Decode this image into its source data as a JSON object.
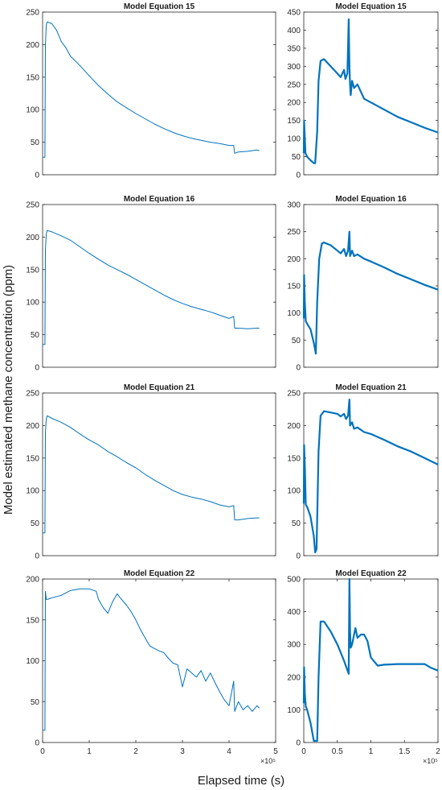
{
  "figure": {
    "ylabel": "Model estimated methane concentration (ppm)",
    "xlabel": "Elapsed time (s)",
    "line_color": "#0072BD"
  },
  "chart_data": [
    {
      "type": "line",
      "title": "Model Equation 15",
      "xlim": [
        0,
        500000
      ],
      "ylim": [
        0,
        250
      ],
      "xticks": [],
      "yticks": [
        0,
        50,
        100,
        150,
        200,
        250
      ],
      "series": [
        {
          "x": [
            0,
            4000,
            5000,
            6000,
            8000,
            10000,
            20000,
            30000,
            40000,
            50000,
            60000,
            80000,
            100000,
            120000,
            140000,
            160000,
            180000,
            200000,
            220000,
            240000,
            260000,
            280000,
            300000,
            320000,
            340000,
            360000,
            380000,
            400000,
            410000,
            412000,
            420000,
            440000,
            460000,
            465000
          ],
          "y": [
            27,
            27,
            27,
            200,
            230,
            235,
            232,
            222,
            205,
            195,
            182,
            168,
            152,
            137,
            124,
            112,
            103,
            94,
            86,
            78,
            71,
            65,
            60,
            56,
            53,
            50,
            48,
            45,
            45,
            33,
            35,
            36,
            38,
            37
          ]
        }
      ]
    },
    {
      "type": "line",
      "title": "Model Equation 15",
      "xlim": [
        0,
        200000
      ],
      "ylim": [
        0,
        450
      ],
      "xticks": [],
      "yticks": [
        0,
        50,
        100,
        150,
        200,
        250,
        300,
        350,
        400,
        450
      ],
      "series": [
        {
          "x": [
            0,
            500,
            1500,
            2500,
            5000,
            10000,
            15000,
            17000,
            20000,
            22000,
            25000,
            30000,
            40000,
            50000,
            55000,
            60000,
            62000,
            65000,
            67000,
            68000,
            69000,
            70000,
            72000,
            75000,
            80000,
            90000,
            100000,
            120000,
            140000,
            160000,
            180000,
            200000
          ],
          "y": [
            60,
            150,
            100,
            60,
            50,
            40,
            32,
            32,
            120,
            260,
            315,
            320,
            300,
            280,
            270,
            290,
            265,
            280,
            430,
            300,
            250,
            220,
            260,
            240,
            250,
            210,
            200,
            180,
            160,
            145,
            130,
            117
          ]
        }
      ]
    },
    {
      "type": "line",
      "title": "Model Equation 16",
      "xlim": [
        0,
        500000
      ],
      "ylim": [
        0,
        250
      ],
      "xticks": [],
      "yticks": [
        0,
        50,
        100,
        150,
        200,
        250
      ],
      "series": [
        {
          "x": [
            0,
            5000,
            6000,
            8000,
            10000,
            20000,
            40000,
            60000,
            80000,
            100000,
            120000,
            140000,
            160000,
            180000,
            200000,
            220000,
            240000,
            260000,
            280000,
            300000,
            320000,
            340000,
            360000,
            380000,
            400000,
            410000,
            412000,
            420000,
            440000,
            460000,
            465000
          ],
          "y": [
            35,
            35,
            180,
            205,
            210,
            208,
            202,
            195,
            185,
            175,
            166,
            157,
            150,
            143,
            135,
            127,
            119,
            111,
            104,
            98,
            93,
            89,
            85,
            80,
            75,
            78,
            60,
            60,
            59,
            60,
            60
          ]
        }
      ]
    },
    {
      "type": "line",
      "title": "Model Equation 16",
      "xlim": [
        0,
        200000
      ],
      "ylim": [
        0,
        300
      ],
      "xticks": [],
      "yticks": [
        0,
        50,
        100,
        150,
        200,
        250,
        300
      ],
      "series": [
        {
          "x": [
            0,
            500,
            1500,
            3000,
            5000,
            10000,
            15000,
            18000,
            20000,
            23000,
            27000,
            30000,
            40000,
            50000,
            55000,
            60000,
            63000,
            66000,
            68000,
            69000,
            72000,
            75000,
            80000,
            90000,
            100000,
            120000,
            140000,
            160000,
            180000,
            200000
          ],
          "y": [
            90,
            170,
            120,
            85,
            80,
            70,
            45,
            25,
            120,
            200,
            228,
            230,
            225,
            215,
            210,
            218,
            205,
            215,
            250,
            205,
            215,
            205,
            208,
            200,
            195,
            184,
            172,
            162,
            152,
            143
          ]
        }
      ]
    },
    {
      "type": "line",
      "title": "Model Equation 21",
      "xlim": [
        0,
        500000
      ],
      "ylim": [
        0,
        250
      ],
      "xticks": [],
      "yticks": [
        0,
        50,
        100,
        150,
        200,
        250
      ],
      "series": [
        {
          "x": [
            0,
            5000,
            6000,
            8000,
            10000,
            20000,
            40000,
            60000,
            80000,
            100000,
            120000,
            140000,
            160000,
            180000,
            200000,
            220000,
            240000,
            260000,
            280000,
            300000,
            320000,
            340000,
            360000,
            380000,
            400000,
            410000,
            412000,
            420000,
            440000,
            460000,
            465000
          ],
          "y": [
            35,
            35,
            190,
            210,
            215,
            211,
            205,
            197,
            187,
            178,
            170,
            160,
            152,
            143,
            135,
            125,
            116,
            108,
            100,
            94,
            90,
            87,
            83,
            78,
            75,
            77,
            55,
            55,
            57,
            58,
            58
          ]
        }
      ]
    },
    {
      "type": "line",
      "title": "Model Equation 21",
      "xlim": [
        0,
        200000
      ],
      "ylim": [
        0,
        250
      ],
      "xticks": [],
      "yticks": [
        0,
        50,
        100,
        150,
        200,
        250
      ],
      "series": [
        {
          "x": [
            0,
            500,
            1500,
            3000,
            5000,
            10000,
            15000,
            17000,
            19000,
            22000,
            25000,
            30000,
            40000,
            50000,
            55000,
            60000,
            63000,
            66000,
            68000,
            69000,
            72000,
            75000,
            80000,
            90000,
            100000,
            120000,
            140000,
            160000,
            180000,
            200000
          ],
          "y": [
            80,
            170,
            140,
            78,
            75,
            60,
            30,
            5,
            10,
            160,
            215,
            222,
            220,
            218,
            214,
            218,
            210,
            215,
            240,
            200,
            205,
            195,
            197,
            190,
            187,
            178,
            168,
            160,
            150,
            140
          ]
        }
      ]
    },
    {
      "type": "line",
      "title": "Model Equation 22",
      "xlim": [
        0,
        500000
      ],
      "ylim": [
        0,
        200
      ],
      "xticks": [
        0,
        1,
        2,
        3,
        4,
        5
      ],
      "x_exponent": "×10⁵",
      "yticks": [
        0,
        50,
        100,
        150,
        200
      ],
      "series": [
        {
          "x": [
            0,
            5000,
            6000,
            8000,
            10000,
            20000,
            40000,
            60000,
            80000,
            100000,
            115000,
            120000,
            130000,
            140000,
            150000,
            160000,
            165000,
            180000,
            190000,
            200000,
            210000,
            220000,
            230000,
            240000,
            250000,
            260000,
            270000,
            280000,
            290000,
            300000,
            310000,
            320000,
            330000,
            340000,
            350000,
            360000,
            370000,
            380000,
            390000,
            400000,
            410000,
            412000,
            420000,
            430000,
            440000,
            450000,
            460000,
            465000
          ],
          "y": [
            15,
            15,
            185,
            175,
            175,
            177,
            180,
            186,
            188,
            188,
            185,
            175,
            165,
            158,
            172,
            182,
            178,
            168,
            160,
            150,
            138,
            128,
            118,
            115,
            112,
            110,
            103,
            97,
            95,
            68,
            90,
            85,
            80,
            88,
            75,
            85,
            73,
            62,
            52,
            45,
            75,
            38,
            50,
            40,
            45,
            38,
            45,
            42
          ]
        }
      ]
    },
    {
      "type": "line",
      "title": "Model Equation 22",
      "xlim": [
        0,
        200000
      ],
      "ylim": [
        0,
        500
      ],
      "xticks": [
        0,
        0.5,
        1,
        1.5,
        2
      ],
      "x_exponent": "×10⁵",
      "yticks": [
        0,
        100,
        200,
        300,
        400,
        500
      ],
      "series": [
        {
          "x": [
            0,
            500,
            1500,
            3000,
            5000,
            10000,
            15000,
            18000,
            20000,
            22000,
            25000,
            30000,
            40000,
            50000,
            60000,
            67000,
            68000,
            69000,
            70000,
            72000,
            75000,
            77000,
            80000,
            85000,
            90000,
            95000,
            100000,
            110000,
            120000,
            140000,
            160000,
            180000,
            190000,
            200000
          ],
          "y": [
            120,
            230,
            150,
            110,
            100,
            60,
            5,
            5,
            5,
            200,
            370,
            370,
            340,
            300,
            250,
            210,
            500,
            340,
            290,
            300,
            330,
            350,
            320,
            330,
            330,
            310,
            260,
            235,
            238,
            240,
            240,
            240,
            228,
            220
          ]
        }
      ]
    }
  ]
}
